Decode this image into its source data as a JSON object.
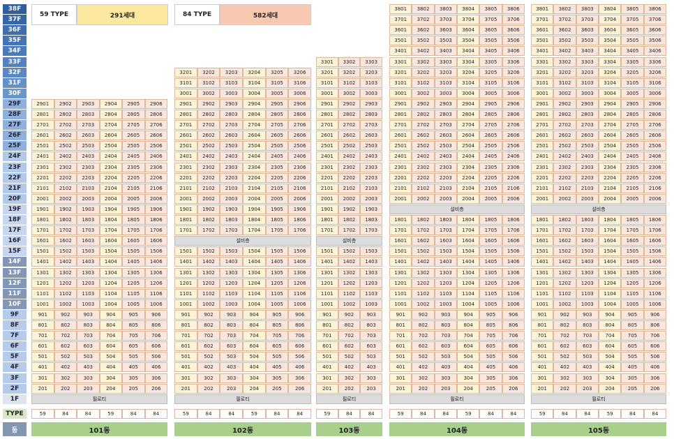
{
  "legend": [
    {
      "type": "59 TYPE",
      "value": 59,
      "count": "291세대",
      "color": "#fde8a0",
      "cell_color": "#fdf3d6"
    },
    {
      "type": "84 TYPE",
      "value": 84,
      "count": "582세대",
      "color": "#f8c8b0",
      "cell_color": "#fbe6de"
    }
  ],
  "floors": [
    "38F",
    "37F",
    "36F",
    "35F",
    "34F",
    "33F",
    "32F",
    "31F",
    "30F",
    "29F",
    "28F",
    "27F",
    "26F",
    "25F",
    "24F",
    "23F",
    "22F",
    "21F",
    "20F",
    "19F",
    "18F",
    "17F",
    "16F",
    "15F",
    "14F",
    "13F",
    "12F",
    "11F",
    "10F",
    "9F",
    "8F",
    "7F",
    "6F",
    "5F",
    "4F",
    "3F",
    "2F",
    "1F"
  ],
  "type_label": "TYPE",
  "dong_label": "동",
  "buildings": [
    {
      "name": "101동",
      "types": [
        59,
        84,
        84,
        59,
        84,
        84
      ],
      "rows": [
        null,
        null,
        null,
        null,
        null,
        null,
        null,
        null,
        null,
        [
          2901,
          2902,
          2903,
          2904,
          2905,
          2906
        ],
        [
          2801,
          2802,
          2803,
          2804,
          2805,
          2806
        ],
        [
          2701,
          2702,
          2703,
          2704,
          2705,
          2706
        ],
        [
          2601,
          2602,
          2603,
          2604,
          2605,
          2606
        ],
        [
          2501,
          2502,
          2503,
          2504,
          2505,
          2506
        ],
        [
          2401,
          2402,
          2403,
          2404,
          2405,
          2406
        ],
        [
          2301,
          2302,
          2303,
          2304,
          2305,
          2306
        ],
        [
          2201,
          2202,
          2203,
          2204,
          2205,
          2206
        ],
        [
          2101,
          2102,
          2103,
          2104,
          2105,
          2106
        ],
        [
          2001,
          2002,
          2003,
          2004,
          2005,
          2006
        ],
        [
          1901,
          1902,
          1903,
          1904,
          1905,
          1906
        ],
        [
          1801,
          1802,
          1803,
          1804,
          1805,
          1806
        ],
        [
          1701,
          1702,
          1703,
          1704,
          1705,
          1706
        ],
        [
          1601,
          1602,
          1603,
          1604,
          1605,
          1606
        ],
        [
          1501,
          1502,
          1503,
          1504,
          1505,
          1506
        ],
        [
          1401,
          1402,
          1403,
          1404,
          1405,
          1406
        ],
        [
          1301,
          1302,
          1303,
          1304,
          1305,
          1306
        ],
        [
          1201,
          1202,
          1203,
          1204,
          1205,
          1206
        ],
        [
          1101,
          1102,
          1103,
          1104,
          1105,
          1106
        ],
        [
          1001,
          1002,
          1003,
          1004,
          1005,
          1006
        ],
        [
          901,
          902,
          903,
          904,
          905,
          906
        ],
        [
          801,
          802,
          803,
          804,
          805,
          806
        ],
        [
          701,
          702,
          703,
          704,
          705,
          706
        ],
        [
          601,
          602,
          603,
          604,
          605,
          606
        ],
        [
          501,
          502,
          503,
          504,
          505,
          506
        ],
        [
          401,
          402,
          403,
          404,
          405,
          406
        ],
        [
          301,
          302,
          303,
          304,
          305,
          306
        ],
        [
          201,
          202,
          203,
          204,
          205,
          206
        ],
        "필로티"
      ]
    },
    {
      "name": "102동",
      "types": [
        59,
        84,
        84,
        59,
        84,
        84
      ],
      "rows": [
        null,
        null,
        null,
        null,
        null,
        null,
        [
          3201,
          3202,
          3203,
          3204,
          3205,
          3206
        ],
        [
          3101,
          3102,
          3103,
          3104,
          3105,
          3106
        ],
        [
          3001,
          3002,
          3003,
          3004,
          3005,
          3006
        ],
        [
          2901,
          2902,
          2903,
          2904,
          2905,
          2906
        ],
        [
          2801,
          2802,
          2803,
          2804,
          2805,
          2806
        ],
        [
          2701,
          2702,
          2703,
          2704,
          2705,
          2706
        ],
        [
          2601,
          2602,
          2603,
          2604,
          2605,
          2606
        ],
        [
          2501,
          2502,
          2503,
          2504,
          2505,
          2506
        ],
        [
          2401,
          2402,
          2403,
          2404,
          2405,
          2406
        ],
        [
          2301,
          2302,
          2303,
          2304,
          2305,
          2306
        ],
        [
          2201,
          2202,
          2203,
          2204,
          2205,
          2206
        ],
        [
          2101,
          2102,
          2103,
          2104,
          2105,
          2106
        ],
        [
          2001,
          2002,
          2003,
          2004,
          2005,
          2006
        ],
        [
          1901,
          1902,
          1903,
          1904,
          1905,
          1906
        ],
        [
          1801,
          1802,
          1803,
          1804,
          1805,
          1806
        ],
        [
          1701,
          1702,
          1703,
          1704,
          1705,
          1706
        ],
        "설비층",
        [
          1501,
          1502,
          1503,
          1504,
          1505,
          1506
        ],
        [
          1401,
          1402,
          1403,
          1404,
          1405,
          1406
        ],
        [
          1301,
          1302,
          1303,
          1304,
          1305,
          1306
        ],
        [
          1201,
          1202,
          1203,
          1204,
          1205,
          1206
        ],
        [
          1101,
          1102,
          1103,
          1104,
          1105,
          1106
        ],
        [
          1001,
          1002,
          1003,
          1004,
          1005,
          1006
        ],
        [
          901,
          902,
          903,
          904,
          905,
          906
        ],
        [
          801,
          802,
          803,
          804,
          805,
          806
        ],
        [
          701,
          702,
          703,
          704,
          705,
          706
        ],
        [
          601,
          602,
          603,
          604,
          605,
          606
        ],
        [
          501,
          502,
          503,
          504,
          505,
          506
        ],
        [
          401,
          402,
          403,
          404,
          405,
          406
        ],
        [
          301,
          302,
          303,
          304,
          305,
          306
        ],
        [
          201,
          202,
          203,
          204,
          205,
          206
        ],
        "필로티"
      ]
    },
    {
      "name": "103동",
      "types": [
        59,
        84,
        84
      ],
      "rows": [
        null,
        null,
        null,
        null,
        null,
        [
          3301,
          3302,
          3303
        ],
        [
          3201,
          3202,
          3203
        ],
        [
          3101,
          3102,
          3103
        ],
        [
          3001,
          3002,
          3003
        ],
        [
          2901,
          2902,
          2903
        ],
        [
          2801,
          2802,
          2803
        ],
        [
          2701,
          2702,
          2703
        ],
        [
          2601,
          2602,
          2603
        ],
        [
          2501,
          2502,
          2503
        ],
        [
          2401,
          2402,
          2403
        ],
        [
          2301,
          2302,
          2303
        ],
        [
          2201,
          2202,
          2203
        ],
        [
          2101,
          2102,
          2103
        ],
        [
          2001,
          2002,
          2003
        ],
        [
          1901,
          1902,
          1903
        ],
        [
          1801,
          1802,
          1803
        ],
        [
          1701,
          1702,
          1703
        ],
        "설비층",
        [
          1501,
          1502,
          1503
        ],
        [
          1401,
          1402,
          1403
        ],
        [
          1301,
          1302,
          1303
        ],
        [
          1201,
          1202,
          1203
        ],
        [
          1101,
          1102,
          1103
        ],
        [
          1001,
          1002,
          1003
        ],
        [
          901,
          902,
          903
        ],
        [
          801,
          802,
          803
        ],
        [
          701,
          702,
          703
        ],
        [
          601,
          602,
          603
        ],
        [
          501,
          502,
          503
        ],
        [
          401,
          402,
          403
        ],
        [
          301,
          302,
          303
        ],
        [
          201,
          202,
          203
        ],
        "필로티"
      ]
    },
    {
      "name": "104동",
      "types": [
        59,
        84,
        84,
        59,
        84,
        84
      ],
      "rows": [
        [
          3801,
          3802,
          3803,
          3804,
          3805,
          3806
        ],
        [
          3701,
          3702,
          3703,
          3704,
          3705,
          3706
        ],
        [
          3601,
          3602,
          3603,
          3604,
          3605,
          3606
        ],
        [
          3501,
          3502,
          3503,
          3504,
          3505,
          3506
        ],
        [
          3401,
          3402,
          3403,
          3404,
          3405,
          3406
        ],
        [
          3301,
          3302,
          3303,
          3304,
          3305,
          3306
        ],
        [
          3201,
          3202,
          3203,
          3204,
          3205,
          3206
        ],
        [
          3101,
          3102,
          3103,
          3104,
          3105,
          3106
        ],
        [
          3001,
          3002,
          3003,
          3004,
          3005,
          3006
        ],
        [
          2901,
          2902,
          2903,
          2904,
          2905,
          2906
        ],
        [
          2801,
          2802,
          2803,
          2804,
          2805,
          2806
        ],
        [
          2701,
          2702,
          2703,
          2704,
          2705,
          2706
        ],
        [
          2601,
          2602,
          2603,
          2604,
          2605,
          2606
        ],
        [
          2501,
          2502,
          2503,
          2504,
          2505,
          2506
        ],
        [
          2401,
          2402,
          2403,
          2404,
          2405,
          2406
        ],
        [
          2301,
          2302,
          2303,
          2304,
          2305,
          2306
        ],
        [
          2201,
          2202,
          2203,
          2204,
          2205,
          2206
        ],
        [
          2101,
          2102,
          2103,
          2104,
          2105,
          2106
        ],
        [
          2001,
          2002,
          2003,
          2004,
          2005,
          2006
        ],
        "설비층",
        [
          1801,
          1802,
          1803,
          1804,
          1805,
          1806
        ],
        [
          1701,
          1702,
          1703,
          1704,
          1705,
          1706
        ],
        [
          1601,
          1602,
          1603,
          1604,
          1605,
          1606
        ],
        [
          1501,
          1502,
          1503,
          1504,
          1505,
          1506
        ],
        [
          1401,
          1402,
          1403,
          1404,
          1405,
          1406
        ],
        [
          1301,
          1302,
          1303,
          1304,
          1305,
          1306
        ],
        [
          1201,
          1202,
          1203,
          1204,
          1205,
          1206
        ],
        [
          1101,
          1102,
          1103,
          1104,
          1105,
          1106
        ],
        [
          1001,
          1002,
          1003,
          1004,
          1005,
          1006
        ],
        [
          901,
          902,
          903,
          904,
          905,
          906
        ],
        [
          801,
          802,
          803,
          804,
          805,
          806
        ],
        [
          701,
          702,
          703,
          704,
          705,
          706
        ],
        [
          601,
          602,
          603,
          604,
          605,
          606
        ],
        [
          501,
          502,
          503,
          504,
          505,
          506
        ],
        [
          401,
          402,
          403,
          404,
          405,
          406
        ],
        [
          301,
          302,
          303,
          304,
          305,
          306
        ],
        [
          201,
          202,
          203,
          204,
          205,
          206
        ],
        "필로티"
      ]
    },
    {
      "name": "105동",
      "types": [
        59,
        84,
        84,
        59,
        84,
        84
      ],
      "rows": [
        [
          3801,
          3802,
          3803,
          3804,
          3805,
          3806
        ],
        [
          3701,
          3702,
          3703,
          3704,
          3705,
          3706
        ],
        [
          3601,
          3602,
          3603,
          3604,
          3605,
          3606
        ],
        [
          3501,
          3502,
          3503,
          3504,
          3505,
          3506
        ],
        [
          3401,
          3402,
          3403,
          3404,
          3405,
          3406
        ],
        [
          3301,
          3302,
          3303,
          3304,
          3305,
          3306
        ],
        [
          3201,
          3202,
          3203,
          3204,
          3205,
          3206
        ],
        [
          3101,
          3102,
          3103,
          3104,
          3105,
          3106
        ],
        [
          3001,
          3002,
          3003,
          3004,
          3005,
          3006
        ],
        [
          2901,
          2902,
          2903,
          2904,
          2905,
          2906
        ],
        [
          2801,
          2802,
          2803,
          2804,
          2805,
          2806
        ],
        [
          2701,
          2702,
          2703,
          2704,
          2705,
          2706
        ],
        [
          2601,
          2602,
          2603,
          2604,
          2605,
          2606
        ],
        [
          2501,
          2502,
          2503,
          2504,
          2505,
          2506
        ],
        [
          2401,
          2402,
          2403,
          2404,
          2405,
          2406
        ],
        [
          2301,
          2302,
          2303,
          2304,
          2305,
          2306
        ],
        [
          2201,
          2202,
          2203,
          2204,
          2205,
          2206
        ],
        [
          2101,
          2102,
          2103,
          2104,
          2105,
          2106
        ],
        [
          2001,
          2002,
          2003,
          2004,
          2005,
          2006
        ],
        "설비층",
        [
          1801,
          1802,
          1803,
          1804,
          1805,
          1806
        ],
        [
          1701,
          1702,
          1703,
          1704,
          1705,
          1706
        ],
        [
          1601,
          1602,
          1603,
          1604,
          1605,
          1606
        ],
        [
          1501,
          1502,
          1503,
          1504,
          1505,
          1506
        ],
        [
          1401,
          1402,
          1403,
          1404,
          1405,
          1406
        ],
        [
          1301,
          1302,
          1303,
          1304,
          1305,
          1306
        ],
        [
          1201,
          1202,
          1203,
          1204,
          1205,
          1206
        ],
        [
          1101,
          1102,
          1103,
          1104,
          1105,
          1106
        ],
        [
          1001,
          1002,
          1003,
          1004,
          1005,
          1006
        ],
        [
          901,
          902,
          903,
          904,
          905,
          906
        ],
        [
          801,
          802,
          803,
          804,
          805,
          806
        ],
        [
          701,
          702,
          703,
          704,
          705,
          706
        ],
        [
          601,
          602,
          603,
          604,
          605,
          606
        ],
        [
          501,
          502,
          503,
          504,
          505,
          506
        ],
        [
          401,
          402,
          403,
          404,
          405,
          406
        ],
        [
          301,
          302,
          303,
          304,
          305,
          306
        ],
        [
          201,
          202,
          203,
          204,
          205,
          206
        ],
        "필로티"
      ]
    }
  ]
}
